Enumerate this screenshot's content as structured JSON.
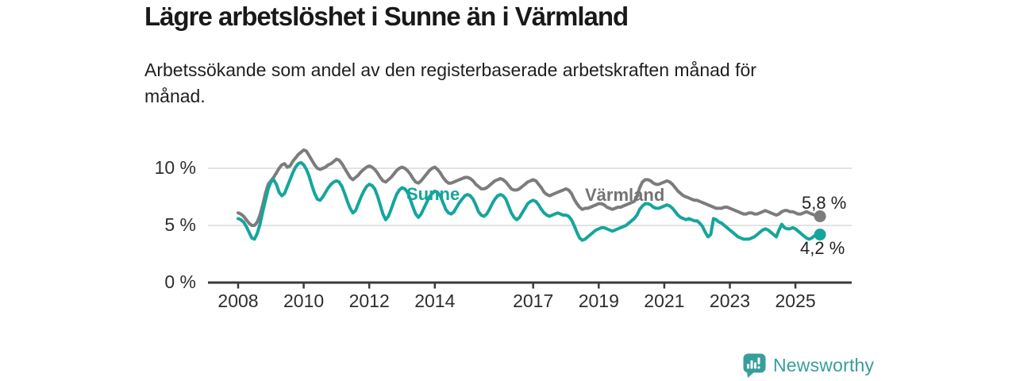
{
  "header": {
    "title": "Lägre arbetslöshet i Sunne än i Värmland",
    "subtitle": "Arbetssökande som andel av den registerbaserade arbetskraften månad för månad."
  },
  "chart_data": {
    "type": "line",
    "title": "Lägre arbetslöshet i Sunne än i Värmland",
    "unit": "%",
    "x_start_year": 2008,
    "points_per_month": 1,
    "x_tick_years": [
      2008,
      2010,
      2012,
      2014,
      2017,
      2019,
      2021,
      2023,
      2025
    ],
    "y_ticks": [
      {
        "value": 0,
        "label": "0 %"
      },
      {
        "value": 5,
        "label": "5 %"
      },
      {
        "value": 10,
        "label": "10 %"
      }
    ],
    "ylim": [
      0,
      12.5
    ],
    "grid": "horizontal",
    "series": [
      {
        "name": "Värmland",
        "color": "#7c7c7c",
        "label_color": "#737373",
        "end_label": "5,8 %",
        "last_value": 5.8,
        "values": [
          6.1,
          6.0,
          5.8,
          5.5,
          5.2,
          5.0,
          5.0,
          5.3,
          5.9,
          6.8,
          7.8,
          8.6,
          8.9,
          9.2,
          9.6,
          10.0,
          10.3,
          10.4,
          10.1,
          10.2,
          10.6,
          10.9,
          11.2,
          11.4,
          11.6,
          11.5,
          11.1,
          10.7,
          10.3,
          10.0,
          9.9,
          10.0,
          10.1,
          10.3,
          10.4,
          10.6,
          10.8,
          10.7,
          10.4,
          10.0,
          9.6,
          9.2,
          9.0,
          9.2,
          9.4,
          9.7,
          9.9,
          10.1,
          10.2,
          10.1,
          9.9,
          9.6,
          9.2,
          8.9,
          8.8,
          9.0,
          9.2,
          9.5,
          9.8,
          10.0,
          10.1,
          10.0,
          9.8,
          9.5,
          9.1,
          8.8,
          8.7,
          8.9,
          9.2,
          9.5,
          9.8,
          10.0,
          10.1,
          9.9,
          9.6,
          9.2,
          8.9,
          8.7,
          8.7,
          8.8,
          8.9,
          9.0,
          9.1,
          9.2,
          9.2,
          9.1,
          8.9,
          8.6,
          8.4,
          8.2,
          8.2,
          8.3,
          8.5,
          8.7,
          8.9,
          9.0,
          9.1,
          9.0,
          8.8,
          8.5,
          8.2,
          8.1,
          8.1,
          8.2,
          8.4,
          8.6,
          8.8,
          8.9,
          9.0,
          8.9,
          8.6,
          8.3,
          7.9,
          7.7,
          7.6,
          7.7,
          7.8,
          7.9,
          8.0,
          8.1,
          8.2,
          8.1,
          7.8,
          7.3,
          6.9,
          6.6,
          6.4,
          6.5,
          6.5,
          6.6,
          6.7,
          6.8,
          6.9,
          6.9,
          6.8,
          6.6,
          6.5,
          6.4,
          6.5,
          6.6,
          6.6,
          6.7,
          6.8,
          6.9,
          7.0,
          7.1,
          7.5,
          8.3,
          8.8,
          9.0,
          9.0,
          8.9,
          8.7,
          8.6,
          8.6,
          8.7,
          8.8,
          8.9,
          8.8,
          8.6,
          8.3,
          8.0,
          7.8,
          7.6,
          7.5,
          7.4,
          7.3,
          7.2,
          7.2,
          7.1,
          7.0,
          6.9,
          6.8,
          6.7,
          6.6,
          6.5,
          6.5,
          6.5,
          6.6,
          6.6,
          6.5,
          6.4,
          6.3,
          6.2,
          6.1,
          6.0,
          6.0,
          6.1,
          6.1,
          6.0,
          6.0,
          6.1,
          6.2,
          6.3,
          6.2,
          6.1,
          6.0,
          5.9,
          6.0,
          6.2,
          6.3,
          6.3,
          6.2,
          6.2,
          6.1,
          6.0,
          6.0,
          6.1,
          6.2,
          6.1,
          6.0,
          5.9,
          5.8,
          5.8
        ]
      },
      {
        "name": "Sunne",
        "color": "#16a59c",
        "label_color": "#16a59c",
        "end_label": "4,2 %",
        "last_value": 4.2,
        "values": [
          5.6,
          5.5,
          5.3,
          4.9,
          4.4,
          3.9,
          3.8,
          4.3,
          5.1,
          6.2,
          7.2,
          8.2,
          8.8,
          9.0,
          8.6,
          7.9,
          7.6,
          7.8,
          8.4,
          9.0,
          9.6,
          10.1,
          10.4,
          10.5,
          10.3,
          9.9,
          9.3,
          8.5,
          7.8,
          7.3,
          7.2,
          7.5,
          7.9,
          8.3,
          8.6,
          8.8,
          8.9,
          8.8,
          8.4,
          7.8,
          7.1,
          6.5,
          6.1,
          6.3,
          6.9,
          7.5,
          8.0,
          8.4,
          8.6,
          8.5,
          8.2,
          7.6,
          6.8,
          6.0,
          5.5,
          5.8,
          6.4,
          7.1,
          7.7,
          8.1,
          8.3,
          8.2,
          7.9,
          7.3,
          6.6,
          6.0,
          5.7,
          6.0,
          6.5,
          7.0,
          7.5,
          7.8,
          8.0,
          7.9,
          7.6,
          7.0,
          6.4,
          6.1,
          6.0,
          6.2,
          6.6,
          7.0,
          7.3,
          7.6,
          7.7,
          7.6,
          7.3,
          6.8,
          6.2,
          5.9,
          5.8,
          6.0,
          6.4,
          6.9,
          7.3,
          7.6,
          7.7,
          7.6,
          7.3,
          6.7,
          6.1,
          5.7,
          5.5,
          5.7,
          6.1,
          6.5,
          6.9,
          7.1,
          7.2,
          7.1,
          6.8,
          6.4,
          6.1,
          5.9,
          5.8,
          5.9,
          6.0,
          6.1,
          6.0,
          5.9,
          5.9,
          5.8,
          5.5,
          5.0,
          4.4,
          3.9,
          3.7,
          3.8,
          4.0,
          4.2,
          4.4,
          4.6,
          4.7,
          4.8,
          4.8,
          4.7,
          4.6,
          4.5,
          4.6,
          4.7,
          4.8,
          4.9,
          5.0,
          5.2,
          5.4,
          5.6,
          5.9,
          6.4,
          6.7,
          6.9,
          6.9,
          6.8,
          6.6,
          6.5,
          6.5,
          6.6,
          6.7,
          6.8,
          6.7,
          6.5,
          6.2,
          5.9,
          5.7,
          5.6,
          5.5,
          5.6,
          5.5,
          5.4,
          5.4,
          5.2,
          4.9,
          4.4,
          4.0,
          4.2,
          5.6,
          5.5,
          5.3,
          5.2,
          5.0,
          4.8,
          4.6,
          4.4,
          4.2,
          4.0,
          3.9,
          3.8,
          3.8,
          3.8,
          3.9,
          4.0,
          4.2,
          4.4,
          4.6,
          4.7,
          4.6,
          4.4,
          4.2,
          4.0,
          4.6,
          5.1,
          4.8,
          4.7,
          4.7,
          4.8,
          4.7,
          4.5,
          4.3,
          4.1,
          3.9,
          3.8,
          3.9,
          4.1,
          4.2,
          4.2
        ]
      }
    ]
  },
  "branding": {
    "logo_text": "Newsworthy",
    "logo_color": "#389e9b",
    "logo_icon": "bar-chart-bubble-icon"
  },
  "colors": {
    "axis": "#3b3b3b",
    "gridline": "#dadada",
    "tick_label": "#2e2e2e"
  }
}
